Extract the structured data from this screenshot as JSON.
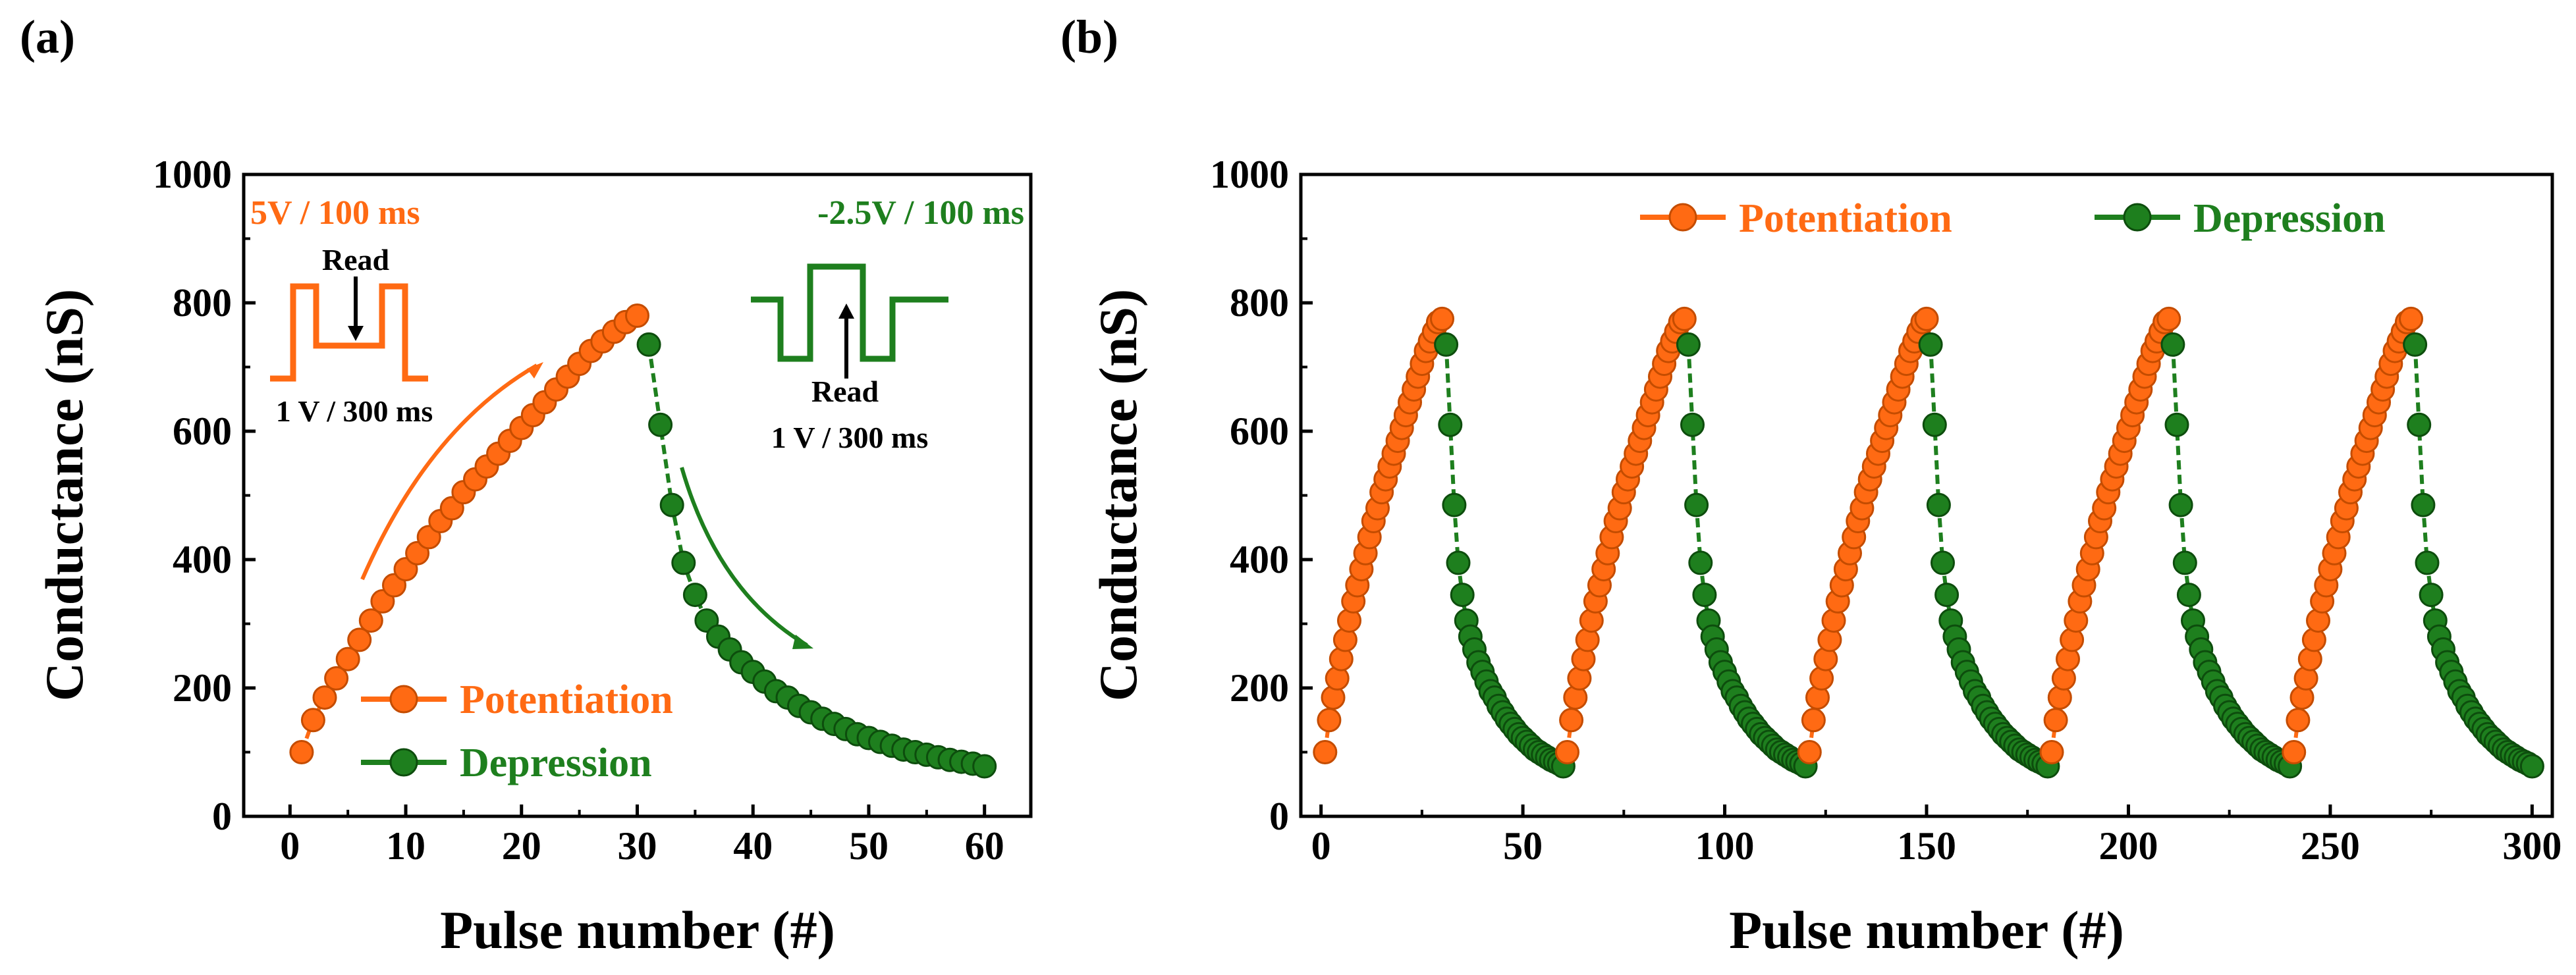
{
  "colors": {
    "potentiation": "#ff6a13",
    "depression": "#1e7f1e",
    "axis": "#000000"
  },
  "chart_data": [
    {
      "panel": "(a)",
      "type": "line-scatter",
      "xlabel": "Pulse number (#)",
      "ylabel": "Conductance (nS)",
      "xlim": [
        -4,
        64
      ],
      "ylim": [
        0,
        1000
      ],
      "xticks": [
        0,
        10,
        20,
        30,
        40,
        50,
        60
      ],
      "yticks": [
        0,
        200,
        400,
        600,
        800,
        1000
      ],
      "legend": {
        "position": "bottom-left",
        "entries": [
          "Potentiation",
          "Depression"
        ]
      },
      "annotations": {
        "pot_pulse": "5V / 100 ms",
        "dep_pulse": "-2.5V / 100 ms",
        "read_label": "Read",
        "read_pulse": "1 V / 300 ms",
        "read_label_2": "Read",
        "read_pulse_2": "1 V / 300 ms"
      },
      "series": [
        {
          "name": "Potentiation",
          "x": [
            1,
            2,
            3,
            4,
            5,
            6,
            7,
            8,
            9,
            10,
            11,
            12,
            13,
            14,
            15,
            16,
            17,
            18,
            19,
            20,
            21,
            22,
            23,
            24,
            25,
            26,
            27,
            28,
            29,
            30
          ],
          "y": [
            100,
            150,
            185,
            215,
            245,
            275,
            305,
            335,
            360,
            385,
            410,
            435,
            460,
            480,
            505,
            525,
            545,
            565,
            585,
            605,
            625,
            645,
            665,
            685,
            705,
            725,
            740,
            755,
            770,
            780
          ]
        },
        {
          "name": "Depression",
          "x": [
            31,
            32,
            33,
            34,
            35,
            36,
            37,
            38,
            39,
            40,
            41,
            42,
            43,
            44,
            45,
            46,
            47,
            48,
            49,
            50,
            51,
            52,
            53,
            54,
            55,
            56,
            57,
            58,
            59,
            60
          ],
          "y": [
            735,
            610,
            485,
            395,
            345,
            305,
            280,
            260,
            240,
            225,
            210,
            195,
            185,
            172,
            162,
            152,
            144,
            136,
            128,
            122,
            116,
            110,
            104,
            100,
            96,
            92,
            88,
            85,
            82,
            78
          ]
        }
      ]
    },
    {
      "panel": "(b)",
      "type": "line-scatter",
      "xlabel": "Pulse number (#)",
      "ylabel": "Conductance (nS)",
      "xlim": [
        -5,
        305
      ],
      "ylim": [
        0,
        1000
      ],
      "xticks": [
        0,
        50,
        100,
        150,
        200,
        250,
        300
      ],
      "yticks": [
        0,
        200,
        400,
        600,
        800,
        1000
      ],
      "legend": {
        "position": "top",
        "entries": [
          "Potentiation",
          "Depression"
        ]
      },
      "cycles": 5,
      "cycle_length": 60,
      "potentiation_cycle": [
        100,
        150,
        185,
        215,
        245,
        275,
        305,
        335,
        360,
        385,
        410,
        435,
        460,
        480,
        505,
        525,
        545,
        565,
        585,
        605,
        625,
        645,
        665,
        685,
        705,
        725,
        740,
        755,
        770,
        775
      ],
      "depression_cycle": [
        735,
        610,
        485,
        395,
        345,
        305,
        280,
        260,
        240,
        225,
        210,
        195,
        185,
        172,
        162,
        152,
        144,
        136,
        128,
        122,
        116,
        110,
        104,
        100,
        96,
        92,
        88,
        85,
        82,
        78
      ]
    }
  ]
}
